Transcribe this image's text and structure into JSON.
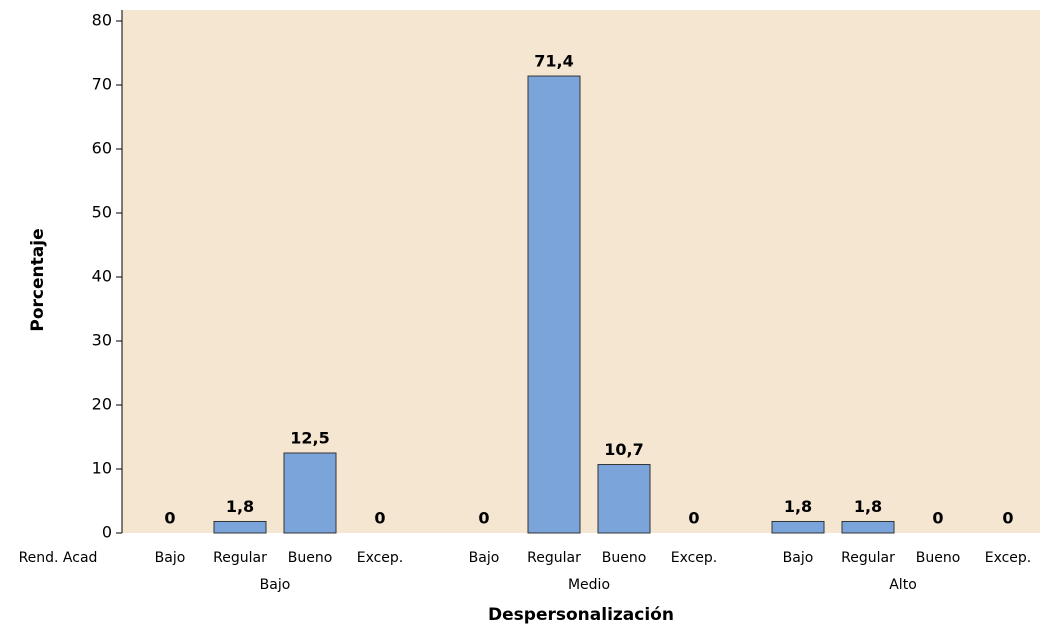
{
  "chart_data": {
    "type": "bar",
    "color": "#7ba5da",
    "edge_color": "#333333",
    "background": "#f5e6d1",
    "y_label": "Porcentaje",
    "x_label": "Despersonalización",
    "row_label": "Rend. Acad",
    "ylim": [
      0,
      80
    ],
    "yticks": [
      0,
      10,
      20,
      30,
      40,
      50,
      60,
      70,
      80
    ],
    "grid": false,
    "groups": [
      {
        "name": "Bajo",
        "categories": [
          "Bajo",
          "Regular",
          "Bueno",
          "Excep."
        ],
        "values": [
          0,
          1.8,
          12.5,
          0
        ],
        "value_labels": [
          "0",
          "1,8",
          "12,5",
          "0"
        ]
      },
      {
        "name": "Medio",
        "categories": [
          "Bajo",
          "Regular",
          "Bueno",
          "Excep."
        ],
        "values": [
          0,
          71.4,
          10.7,
          0
        ],
        "value_labels": [
          "0",
          "71,4",
          "10,7",
          "0"
        ]
      },
      {
        "name": "Alto",
        "categories": [
          "Bajo",
          "Regular",
          "Bueno",
          "Excep."
        ],
        "values": [
          1.8,
          1.8,
          0,
          0
        ],
        "value_labels": [
          "1,8",
          "1,8",
          "0",
          "0"
        ]
      }
    ]
  }
}
